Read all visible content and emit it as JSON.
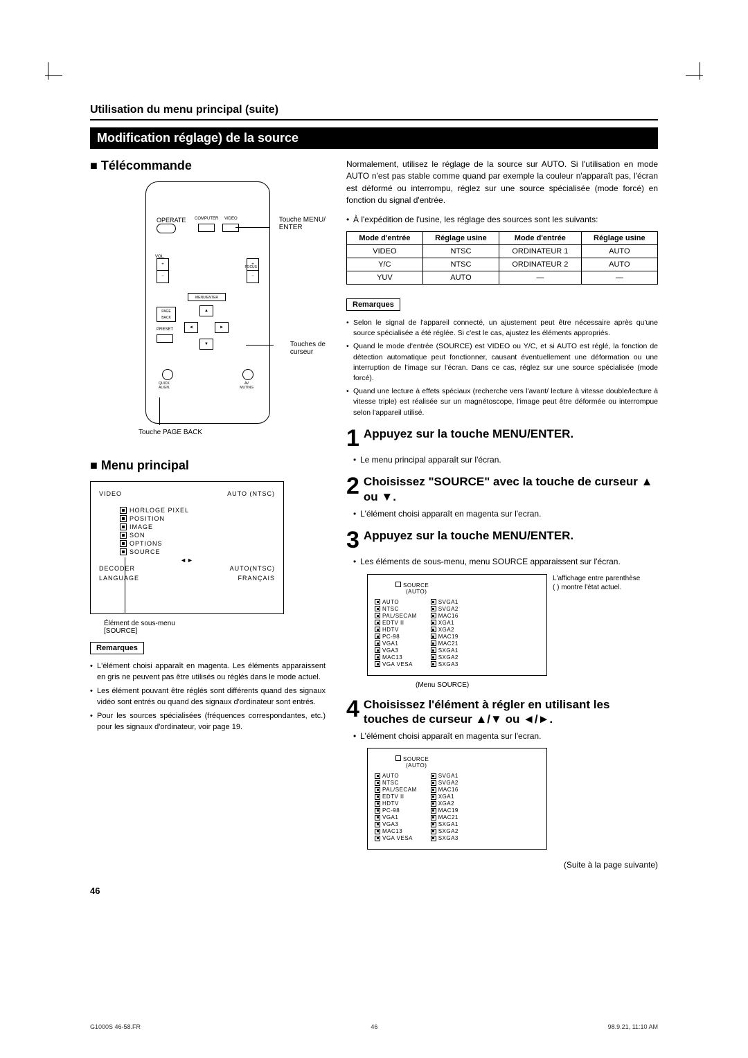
{
  "header": "Utilisation du menu principal (suite)",
  "section_title": "Modification réglage) de la source",
  "left": {
    "telecommande": "Télécommande",
    "menu_principal": "Menu principal",
    "callouts": {
      "menu_enter": "Touche MENU/\nENTER",
      "curseur": "Touches de\ncurseur",
      "page_back": "Touche PAGE BACK"
    },
    "remote_labels": {
      "operate": "OPERATE",
      "computer": "COMPUTER",
      "video": "VIDEO",
      "vol": "VOL.",
      "focus": "FOCUS",
      "menu_enter": "MENU/ENTER",
      "page_back": "PAGE\nBACK",
      "preset": "PRESET",
      "quick_align": "QUICK\nALIGN.",
      "av_muting": "AV\nMUTING"
    },
    "main_menu": {
      "top_left": "VIDEO",
      "top_right": "AUTO (NTSC)",
      "items": [
        "HORLOGE PIXEL",
        "POSITION",
        "IMAGE",
        "SON",
        "OPTIONS",
        "SOURCE"
      ],
      "arrows": "◄►",
      "decoder_label": "DECODER",
      "decoder_val": "AUTO(NTSC)",
      "language_label": "LANGUAGE",
      "language_val": "FRANÇAIS",
      "sub_label": "Élément de sous-menu\n[SOURCE]"
    },
    "remarques_title": "Remarques",
    "remarques": [
      "L'élément choisi apparaît en magenta. Les éléments apparaissent en gris ne peuvent pas être utilisés ou réglés dans le mode actuel.",
      "Les élément pouvant être réglés sont différents quand des signaux vidéo sont entrés ou quand des signaux d'ordinateur sont entrés.",
      "Pour les sources spécialisées (fréquences correspondantes, etc.) pour les signaux d'ordinateur, voir page 19."
    ]
  },
  "right": {
    "intro": "Normalement, utilisez le réglage de la source sur AUTO. Si l'utilisation en mode AUTO n'est pas stable comme quand par exemple la couleur n'apparaît pas, l'écran est déformé ou interrompu, réglez sur une source spécialisée (mode forcé) en fonction du signal d'entrée.",
    "factory_note": "À l'expédition de l'usine, les réglage des sources sont les suivants:",
    "table": {
      "headers": [
        "Mode d'entrée",
        "Réglage usine",
        "Mode d'entrée",
        "Réglage usine"
      ],
      "rows": [
        [
          "VIDEO",
          "NTSC",
          "ORDINATEUR 1",
          "AUTO"
        ],
        [
          "Y/C",
          "NTSC",
          "ORDINATEUR 2",
          "AUTO"
        ],
        [
          "YUV",
          "AUTO",
          "—",
          "—"
        ]
      ]
    },
    "remarques_title": "Remarques",
    "remarques": [
      "Selon le signal de l'appareil connecté, un ajustement peut être nécessaire après qu'une source spécialisée a été réglée. Si c'est le cas, ajustez les éléments appropriés.",
      "Quand le mode d'entrée (SOURCE) est VIDEO ou Y/C, et si AUTO est réglé, la fonction de détection automatique peut fonctionner, causant éventuellement une déformation ou une interruption de l'image sur l'écran. Dans ce cas, réglez sur une source spécialisée (mode forcé).",
      "Quand une lecture à effets spéciaux (recherche vers l'avant/ lecture à vitesse double/lecture à vitesse triple) est réalisée sur un magnétoscope, l'image peut être déformée ou interrompue selon l'appareil utilisé."
    ],
    "steps": [
      {
        "num": "1",
        "title": "Appuyez sur la touche MENU/ENTER.",
        "sub": "Le menu principal apparaît sur l'écran."
      },
      {
        "num": "2",
        "title": "Choisissez \"SOURCE\" avec la touche de curseur ▲ ou ▼.",
        "sub": "L'élément choisi apparaît en magenta sur l'ecran."
      },
      {
        "num": "3",
        "title": "Appuyez sur la touche MENU/ENTER.",
        "sub": "Les éléments de sous-menu, menu SOURCE apparaissent sur l'écran."
      },
      {
        "num": "4",
        "title": "Choisissez l'élément à régler en utilisant les touches de curseur ▲/▼ ou ◄/►.",
        "sub": "L'élément choisi apparaît en magenta sur l'ecran."
      }
    ],
    "source_menu": {
      "title": "SOURCE",
      "subtitle": "(AUTO)",
      "col1": [
        "AUTO",
        "NTSC",
        "PAL/SECAM",
        "EDTV II",
        "HDTV",
        "PC-98",
        "VGA1",
        "VGA3",
        "MAC13",
        "VGA VESA"
      ],
      "col2": [
        "SVGA1",
        "SVGA2",
        "MAC16",
        "XGA1",
        "XGA2",
        "MAC19",
        "MAC21",
        "SXGA1",
        "SXGA2",
        "SXGA3"
      ],
      "side_note": "L'affichage entre parenthèse (  ) montre l'état actuel.",
      "caption": "(Menu SOURCE)"
    },
    "continue": "(Suite à la page suivante)"
  },
  "page_num": "46",
  "footer": {
    "left": "G1000S 46-58.FR",
    "mid": "46",
    "right": "98.9.21, 11:10 AM"
  }
}
